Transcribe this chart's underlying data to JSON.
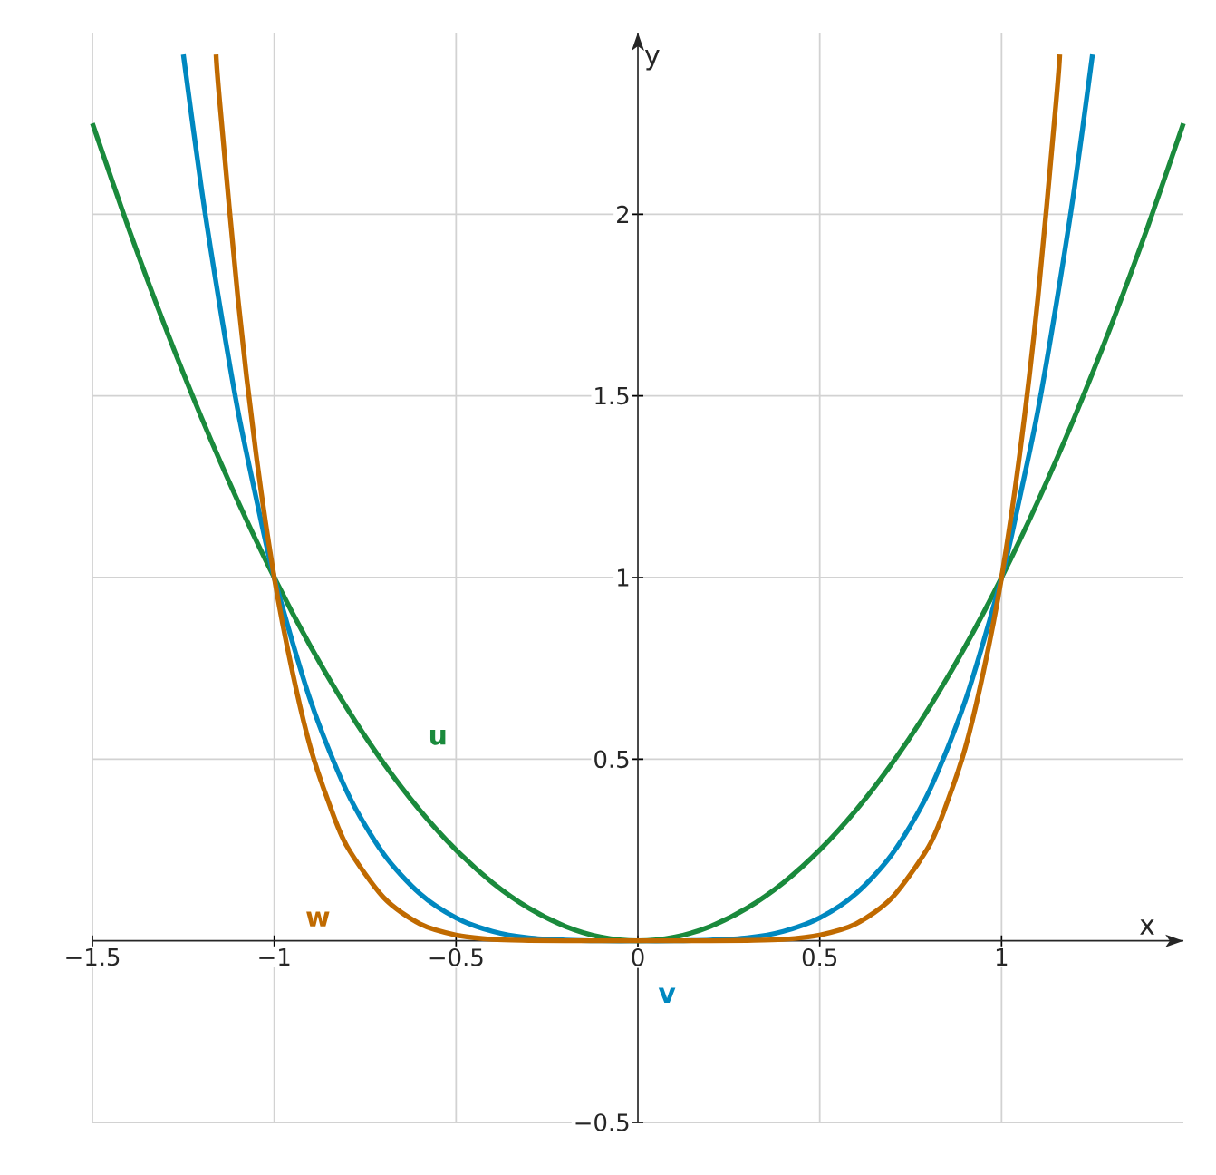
{
  "chart_data": {
    "type": "line",
    "xlabel": "x",
    "ylabel": "y",
    "xlim": [
      -1.5,
      1.5
    ],
    "ylim": [
      -0.5,
      2.5
    ],
    "xticks": [
      {
        "value": -1.5,
        "label": "−1.5"
      },
      {
        "value": -1,
        "label": "−1"
      },
      {
        "value": -0.5,
        "label": "−0.5"
      },
      0,
      0.5,
      1
    ],
    "yticks": [
      {
        "value": -0.5,
        "label": "−0.5"
      },
      0.5,
      1,
      1.5,
      2
    ],
    "grid": true,
    "series": [
      {
        "name": "u",
        "color": "#1a8a3c",
        "x": [
          -1.5,
          -1.4,
          -1.3,
          -1.2,
          -1.1,
          -1,
          -0.9,
          -0.8,
          -0.7,
          -0.6,
          -0.5,
          -0.4,
          -0.3,
          -0.2,
          -0.1,
          0,
          0.1,
          0.2,
          0.3,
          0.4,
          0.5,
          0.6,
          0.7,
          0.8,
          0.9,
          1,
          1.1,
          1.2,
          1.3,
          1.4,
          1.5
        ],
        "values": [
          2.25,
          1.96,
          1.69,
          1.44,
          1.21,
          1,
          0.81,
          0.64,
          0.49,
          0.36,
          0.25,
          0.16,
          0.09,
          0.04,
          0.01,
          0,
          0.01,
          0.04,
          0.09,
          0.16,
          0.25,
          0.36,
          0.49,
          0.64,
          0.81,
          1,
          1.21,
          1.44,
          1.69,
          1.96,
          2.25
        ]
      },
      {
        "name": "v",
        "color": "#0088c0",
        "x": [
          -1.25,
          -1.2,
          -1.15,
          -1.1,
          -1.05,
          -1,
          -0.9,
          -0.8,
          -0.7,
          -0.6,
          -0.5,
          -0.4,
          -0.3,
          -0.2,
          -0.1,
          0,
          0.1,
          0.2,
          0.3,
          0.4,
          0.5,
          0.6,
          0.7,
          0.8,
          0.9,
          1,
          1.05,
          1.1,
          1.15,
          1.2,
          1.25
        ],
        "values": [
          2.44,
          2.07,
          1.75,
          1.46,
          1.22,
          1,
          0.66,
          0.41,
          0.24,
          0.13,
          0.063,
          0.026,
          0.008,
          0.002,
          0,
          0,
          0,
          0.002,
          0.008,
          0.026,
          0.063,
          0.13,
          0.24,
          0.41,
          0.66,
          1,
          1.22,
          1.46,
          1.75,
          2.07,
          2.44
        ]
      },
      {
        "name": "w",
        "color": "#c06a00",
        "x": [
          -1.16,
          -1.15,
          -1.1,
          -1.05,
          -1,
          -0.95,
          -0.9,
          -0.85,
          -0.8,
          -0.7,
          -0.6,
          -0.5,
          -0.4,
          -0.3,
          -0.2,
          0,
          0.2,
          0.3,
          0.4,
          0.5,
          0.6,
          0.7,
          0.8,
          0.85,
          0.9,
          0.95,
          1,
          1.05,
          1.1,
          1.15,
          1.16
        ],
        "values": [
          2.44,
          2.31,
          1.77,
          1.34,
          1,
          0.74,
          0.53,
          0.38,
          0.26,
          0.12,
          0.047,
          0.016,
          0.004,
          0.001,
          0,
          0,
          0,
          0.001,
          0.004,
          0.016,
          0.047,
          0.12,
          0.26,
          0.38,
          0.53,
          0.74,
          1,
          1.34,
          1.77,
          2.31,
          2.44
        ]
      }
    ]
  }
}
